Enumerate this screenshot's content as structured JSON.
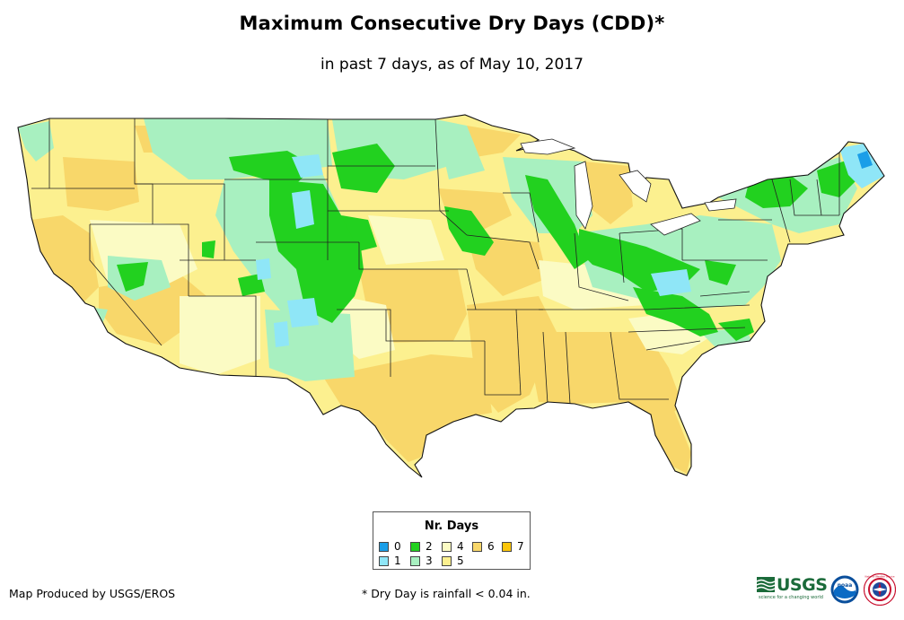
{
  "header": {
    "title": "Maximum Consecutive Dry Days (CDD)*",
    "subtitle": "in past 7 days, as of May 10, 2017"
  },
  "legend": {
    "title": "Nr. Days",
    "items": [
      {
        "label": "0",
        "color": "#1a9ee8"
      },
      {
        "label": "1",
        "color": "#8fe6f7"
      },
      {
        "label": "2",
        "color": "#22d11f"
      },
      {
        "label": "3",
        "color": "#a8f0c0"
      },
      {
        "label": "4",
        "color": "#fbfbc4"
      },
      {
        "label": "5",
        "color": "#fcf08f"
      },
      {
        "label": "6",
        "color": "#f8d76a"
      },
      {
        "label": "7",
        "color": "#fcc60a"
      }
    ]
  },
  "footer": {
    "producer": "Map Produced by USGS/EROS",
    "note": "* Dry Day is rainfall < 0.04 in."
  },
  "logos": {
    "usgs": "USGS",
    "usgs_tagline": "science for a changing world",
    "noaa": "noaa",
    "nws": "National Weather Service"
  },
  "map": {
    "region": "Contiguous United States",
    "icon": "us-states-map"
  }
}
